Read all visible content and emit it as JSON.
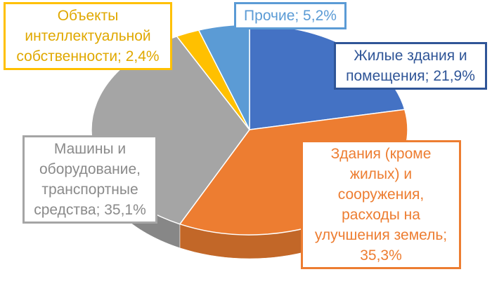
{
  "chart_data": {
    "type": "pie",
    "title": "",
    "slices": [
      {
        "name": "Жилые здания и помещения",
        "value": 21.9,
        "color": "#4472c4",
        "label_lines": [
          "Жилые здания и",
          "помещения; 21,9%"
        ]
      },
      {
        "name": "Здания (кроме жилых) и сооружения, расходы на улучшения земель",
        "value": 35.3,
        "color": "#ed7d31",
        "label_lines": [
          "Здания (кроме",
          "жилых) и",
          "сооружения,",
          "расходы на",
          "улучшения земель;",
          "35,3%"
        ]
      },
      {
        "name": "Машины и оборудование, транспортные средства",
        "value": 35.1,
        "color": "#a5a5a5",
        "label_lines": [
          "Машины и",
          "оборудование,",
          "транспортные",
          "средства; 35,1%"
        ]
      },
      {
        "name": "Объекты интеллектуальной собственности",
        "value": 2.4,
        "color": "#ffc000",
        "label_lines": [
          "Объекты",
          "интеллектуальной",
          "собственности; 2,4%"
        ]
      },
      {
        "name": "Прочие",
        "value": 5.2,
        "color": "#5b9bd5",
        "label_lines": [
          "Прочие; 5,2%"
        ]
      }
    ],
    "legend": "none",
    "style": "3d-pie",
    "label_colors": {
      "residential": "#2f5597",
      "nonresidential": "#ed7d31",
      "machinery": "#a5a5a5",
      "ip": "#ffc000",
      "other": "#5b9bd5"
    }
  }
}
